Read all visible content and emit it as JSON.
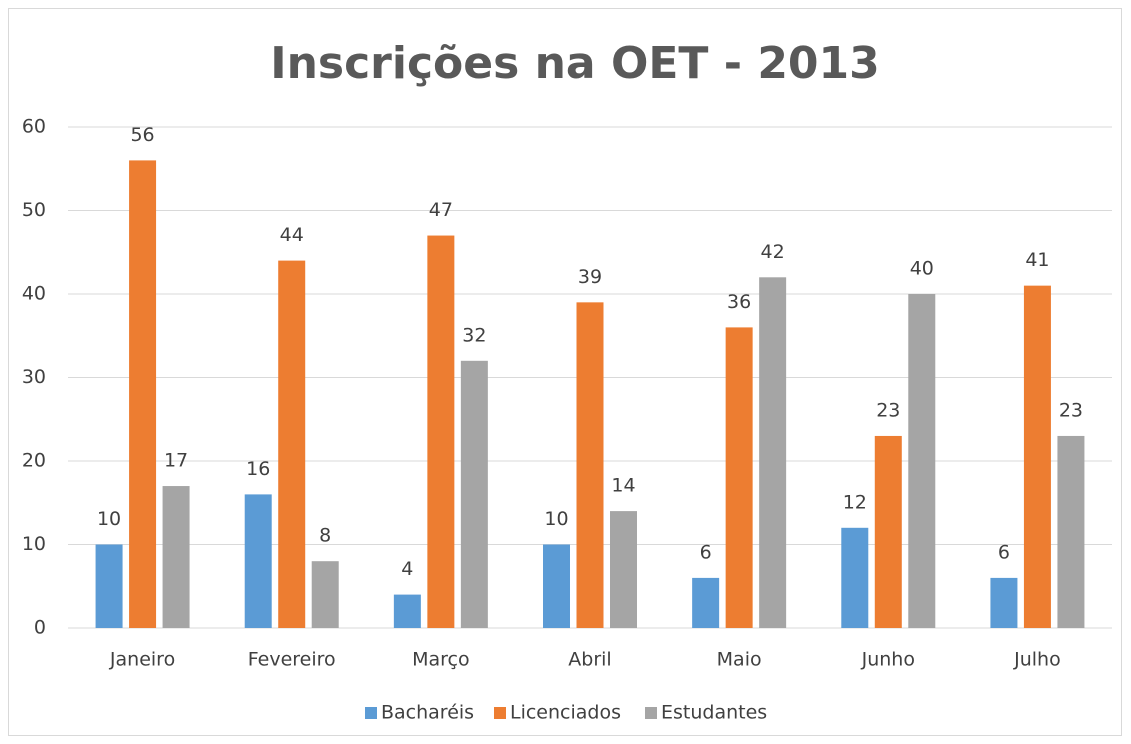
{
  "chart_data": {
    "type": "bar",
    "title": "Inscrições na OET - 2013",
    "categories": [
      "Janeiro",
      "Fevereiro",
      "Março",
      "Abril",
      "Maio",
      "Junho",
      "Julho"
    ],
    "series": [
      {
        "name": "Bacharéis",
        "color": "#5b9bd5",
        "values": [
          10,
          16,
          4,
          10,
          6,
          12,
          6
        ]
      },
      {
        "name": "Licenciados",
        "color": "#ed7d31",
        "values": [
          56,
          44,
          47,
          39,
          36,
          23,
          41
        ]
      },
      {
        "name": "Estudantes",
        "color": "#a5a5a5",
        "values": [
          17,
          8,
          32,
          14,
          42,
          40,
          23
        ]
      }
    ],
    "ylim": [
      0,
      60
    ],
    "yticks": [
      0,
      10,
      20,
      30,
      40,
      50,
      60
    ],
    "grid": true,
    "legend": "bottom"
  }
}
